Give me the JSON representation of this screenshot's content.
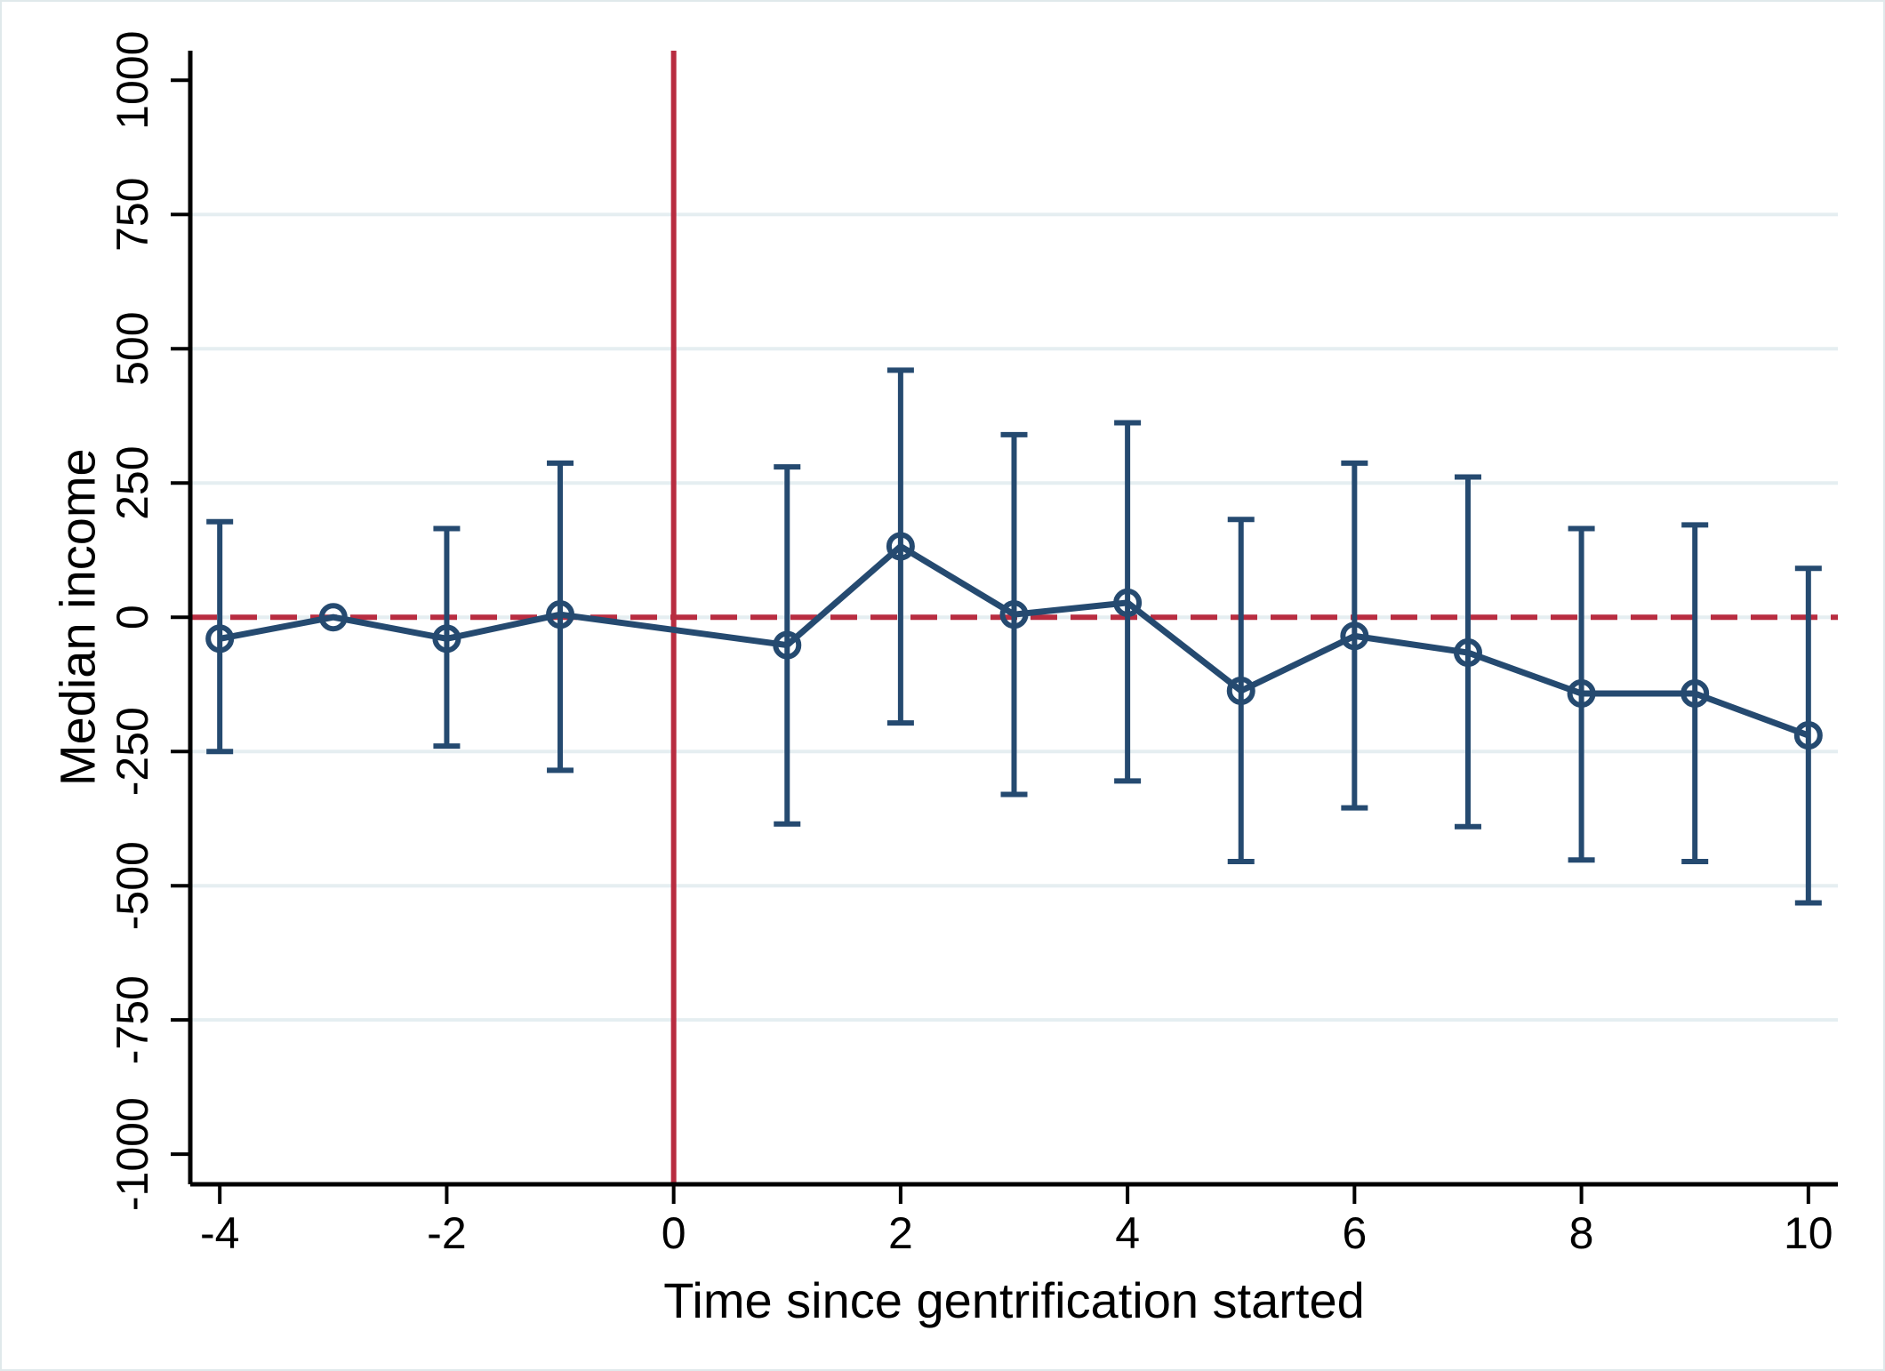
{
  "figure": {
    "background": "#ffffff",
    "border_color": "#e0e9eb"
  },
  "chart_data": {
    "type": "line",
    "subtype": "event-study-coefficients-with-error-bars",
    "title": "",
    "xlabel": "Time since gentrification started",
    "ylabel": "Median income",
    "x_ticks": [
      -4,
      -2,
      0,
      2,
      4,
      6,
      8,
      10
    ],
    "y_ticks": [
      -1000,
      -750,
      -500,
      -250,
      0,
      250,
      500,
      750,
      1000
    ],
    "xlim": [
      -4.26,
      10.26
    ],
    "ylim": [
      -1056,
      1055
    ],
    "grid": true,
    "gridline_values": [
      -750,
      -500,
      -250,
      0,
      250,
      500,
      750
    ],
    "reference_lines": {
      "vline_x": 0,
      "hline_y": 0,
      "hline_style": "dashed",
      "vline_style": "solid"
    },
    "omitted_period_x": -3,
    "series": [
      {
        "name": "coefficient",
        "marker": "hollow-circle",
        "points": [
          {
            "x": -4,
            "y": -40,
            "ci_low": -250,
            "ci_high": 178
          },
          {
            "x": -3,
            "y": 0,
            "ci_low": null,
            "ci_high": null
          },
          {
            "x": -2,
            "y": -40,
            "ci_low": -240,
            "ci_high": 165
          },
          {
            "x": -1,
            "y": 5,
            "ci_low": -285,
            "ci_high": 287
          },
          {
            "x": 1,
            "y": -52,
            "ci_low": -385,
            "ci_high": 280
          },
          {
            "x": 2,
            "y": 132,
            "ci_low": -197,
            "ci_high": 460
          },
          {
            "x": 3,
            "y": 5,
            "ci_low": -330,
            "ci_high": 340
          },
          {
            "x": 4,
            "y": 27,
            "ci_low": -305,
            "ci_high": 362
          },
          {
            "x": 5,
            "y": -137,
            "ci_low": -455,
            "ci_high": 182
          },
          {
            "x": 6,
            "y": -35,
            "ci_low": -355,
            "ci_high": 287
          },
          {
            "x": 7,
            "y": -66,
            "ci_low": -390,
            "ci_high": 261
          },
          {
            "x": 8,
            "y": -142,
            "ci_low": -452,
            "ci_high": 165
          },
          {
            "x": 9,
            "y": -142,
            "ci_low": -455,
            "ci_high": 172
          },
          {
            "x": 10,
            "y": -220,
            "ci_low": -532,
            "ci_high": 91
          }
        ]
      }
    ],
    "colors": {
      "series": "#254a70",
      "reference": "#b82c40",
      "grid": "#e5eef1",
      "axis": "#000000",
      "plot_background": "#ffffff"
    },
    "legend": {
      "visible": false
    }
  }
}
